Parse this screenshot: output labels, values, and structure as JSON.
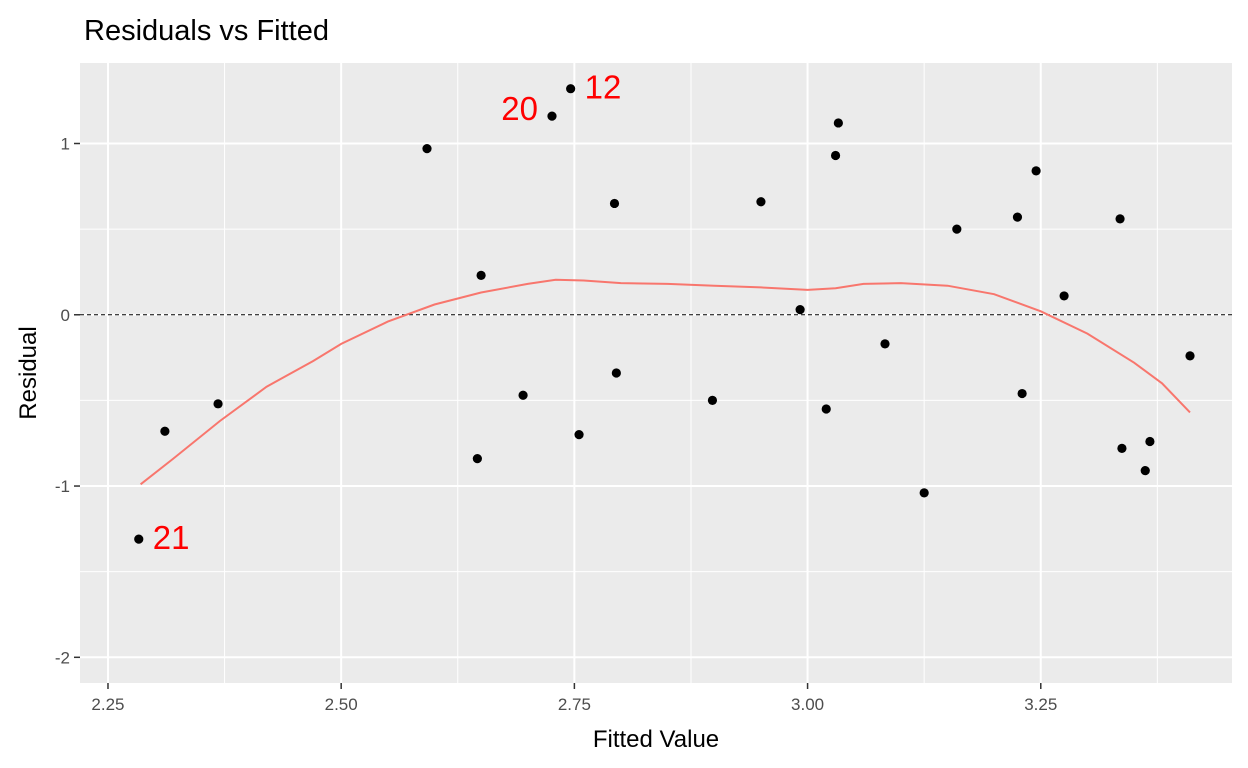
{
  "chart_data": {
    "type": "scatter",
    "title": "Residuals vs Fitted",
    "xlabel": "Fitted Value",
    "ylabel": "Residual",
    "xlim": [
      2.22,
      3.455
    ],
    "ylim": [
      -2.15,
      1.47
    ],
    "x_ticks": [
      {
        "value": 2.25,
        "label": "2.25"
      },
      {
        "value": 2.5,
        "label": "2.50"
      },
      {
        "value": 2.75,
        "label": "2.75"
      },
      {
        "value": 3.0,
        "label": "3.00"
      },
      {
        "value": 3.25,
        "label": "3.25"
      }
    ],
    "y_ticks": [
      {
        "value": 1,
        "label": "1"
      },
      {
        "value": 0,
        "label": "0"
      },
      {
        "value": -1,
        "label": "-1"
      },
      {
        "value": -2,
        "label": "-2"
      }
    ],
    "grid": true,
    "reference_line": {
      "y": 0,
      "style": "dashed",
      "color": "#000000"
    },
    "point_color": "#000000",
    "smooth_color": "#f8766d",
    "label_color": "#ff0000",
    "panel_color": "#ebebeb",
    "points": [
      {
        "x": 2.283,
        "y": -1.31
      },
      {
        "x": 2.311,
        "y": -0.68
      },
      {
        "x": 2.368,
        "y": -0.52
      },
      {
        "x": 2.592,
        "y": 0.97
      },
      {
        "x": 2.646,
        "y": -0.84
      },
      {
        "x": 2.65,
        "y": 0.23
      },
      {
        "x": 2.695,
        "y": -0.47
      },
      {
        "x": 2.726,
        "y": 1.16
      },
      {
        "x": 2.746,
        "y": 1.32
      },
      {
        "x": 2.755,
        "y": -0.7
      },
      {
        "x": 2.793,
        "y": 0.65
      },
      {
        "x": 2.795,
        "y": -0.34
      },
      {
        "x": 2.898,
        "y": -0.5
      },
      {
        "x": 2.95,
        "y": 0.66
      },
      {
        "x": 2.992,
        "y": 0.03
      },
      {
        "x": 3.02,
        "y": -0.55
      },
      {
        "x": 3.03,
        "y": 0.93
      },
      {
        "x": 3.033,
        "y": 1.12
      },
      {
        "x": 3.083,
        "y": -0.17
      },
      {
        "x": 3.125,
        "y": -1.04
      },
      {
        "x": 3.16,
        "y": 0.5
      },
      {
        "x": 3.225,
        "y": 0.57
      },
      {
        "x": 3.23,
        "y": -0.46
      },
      {
        "x": 3.245,
        "y": 0.84
      },
      {
        "x": 3.275,
        "y": 0.11
      },
      {
        "x": 3.335,
        "y": 0.56
      },
      {
        "x": 3.337,
        "y": -0.78
      },
      {
        "x": 3.362,
        "y": -0.91
      },
      {
        "x": 3.367,
        "y": -0.74
      },
      {
        "x": 3.41,
        "y": -0.24
      }
    ],
    "smooth_line": [
      {
        "x": 2.285,
        "y": -0.99
      },
      {
        "x": 2.32,
        "y": -0.84
      },
      {
        "x": 2.37,
        "y": -0.62
      },
      {
        "x": 2.42,
        "y": -0.42
      },
      {
        "x": 2.47,
        "y": -0.27
      },
      {
        "x": 2.5,
        "y": -0.17
      },
      {
        "x": 2.55,
        "y": -0.04
      },
      {
        "x": 2.6,
        "y": 0.06
      },
      {
        "x": 2.65,
        "y": 0.13
      },
      {
        "x": 2.7,
        "y": 0.18
      },
      {
        "x": 2.73,
        "y": 0.205
      },
      {
        "x": 2.76,
        "y": 0.2
      },
      {
        "x": 2.8,
        "y": 0.185
      },
      {
        "x": 2.85,
        "y": 0.18
      },
      {
        "x": 2.9,
        "y": 0.17
      },
      {
        "x": 2.95,
        "y": 0.16
      },
      {
        "x": 3.0,
        "y": 0.145
      },
      {
        "x": 3.03,
        "y": 0.155
      },
      {
        "x": 3.06,
        "y": 0.18
      },
      {
        "x": 3.1,
        "y": 0.185
      },
      {
        "x": 3.15,
        "y": 0.17
      },
      {
        "x": 3.2,
        "y": 0.12
      },
      {
        "x": 3.25,
        "y": 0.02
      },
      {
        "x": 3.3,
        "y": -0.11
      },
      {
        "x": 3.35,
        "y": -0.28
      },
      {
        "x": 3.38,
        "y": -0.4
      },
      {
        "x": 3.41,
        "y": -0.57
      }
    ],
    "point_labels": [
      {
        "text": "12",
        "x": 2.746,
        "y": 1.32,
        "anchor": "right"
      },
      {
        "text": "20",
        "x": 2.726,
        "y": 1.16,
        "anchor": "left"
      },
      {
        "text": "21",
        "x": 2.283,
        "y": -1.31,
        "anchor": "right"
      }
    ]
  }
}
